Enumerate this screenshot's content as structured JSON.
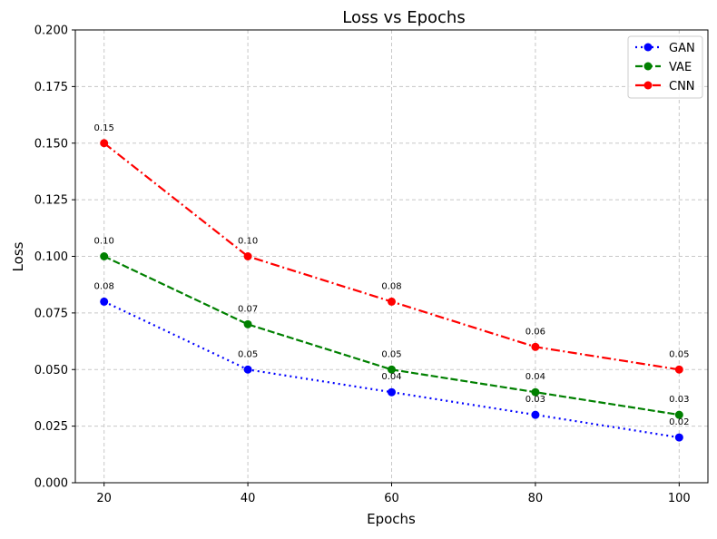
{
  "chart_data": {
    "type": "line",
    "title": "Loss vs Epochs",
    "xlabel": "Epochs",
    "ylabel": "Loss",
    "x": [
      20,
      40,
      60,
      80,
      100
    ],
    "xlim": [
      16,
      104
    ],
    "ylim": [
      0,
      0.2
    ],
    "xticks": [
      20,
      40,
      60,
      80,
      100
    ],
    "yticks": [
      0.0,
      0.025,
      0.05,
      0.075,
      0.1,
      0.125,
      0.15,
      0.175,
      0.2
    ],
    "xtick_labels": [
      "20",
      "40",
      "60",
      "80",
      "100"
    ],
    "ytick_labels": [
      "0.000",
      "0.025",
      "0.050",
      "0.075",
      "0.100",
      "0.125",
      "0.150",
      "0.175",
      "0.200"
    ],
    "grid": true,
    "legend_position": "top-right",
    "series": [
      {
        "name": "GAN",
        "values": [
          0.08,
          0.05,
          0.04,
          0.03,
          0.02
        ],
        "labels": [
          "0.08",
          "0.05",
          "0.04",
          "0.03",
          "0.02"
        ],
        "color": "#0000ff",
        "linestyle": "dotted"
      },
      {
        "name": "VAE",
        "values": [
          0.1,
          0.07,
          0.05,
          0.04,
          0.03
        ],
        "labels": [
          "0.10",
          "0.07",
          "0.05",
          "0.04",
          "0.03"
        ],
        "color": "#008000",
        "linestyle": "dashed"
      },
      {
        "name": "CNN",
        "values": [
          0.15,
          0.1,
          0.08,
          0.06,
          0.05
        ],
        "labels": [
          "0.15",
          "0.10",
          "0.08",
          "0.06",
          "0.05"
        ],
        "color": "#ff0000",
        "linestyle": "dashdot"
      }
    ]
  }
}
